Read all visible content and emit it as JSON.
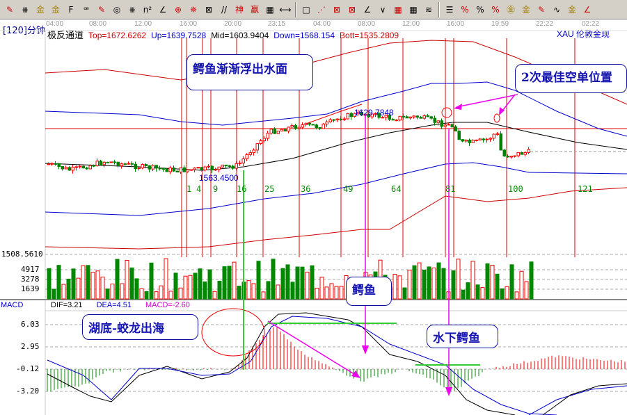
{
  "toolbar": {
    "icons": [
      {
        "name": "draw-pen-icon",
        "g": "✎",
        "c": "red"
      },
      {
        "name": "gann-icon",
        "g": "⧻",
        "c": ""
      },
      {
        "name": "gold-1-icon",
        "g": "金",
        "c": "gold"
      },
      {
        "name": "gold-2-icon",
        "g": "金",
        "c": "gold"
      },
      {
        "name": "f-icon",
        "g": "F",
        "c": ""
      },
      {
        "name": "spiral-icon",
        "g": "ꟹ",
        "c": ""
      },
      {
        "name": "pen-ruler-icon",
        "g": "✎",
        "c": "red"
      },
      {
        "name": "circle-ruler-icon",
        "g": "◎",
        "c": ""
      },
      {
        "name": "parallel-icon",
        "g": "⧻",
        "c": ""
      },
      {
        "name": "n2-icon",
        "g": "n²",
        "c": ""
      },
      {
        "name": "angle-icon",
        "g": "∠",
        "c": ""
      },
      {
        "name": "target-icon",
        "g": "⊕",
        "c": "red"
      },
      {
        "name": "compass-icon",
        "g": "✵",
        "c": "red"
      },
      {
        "name": "box-icon",
        "g": "⊠",
        "c": ""
      },
      {
        "name": "slash-icon",
        "g": "//",
        "c": ""
      },
      {
        "name": "shen-icon",
        "g": "神",
        "c": "red"
      },
      {
        "name": "ying-icon",
        "g": "赢",
        "c": "red"
      },
      {
        "name": "ruler-icon",
        "g": "▦",
        "c": ""
      },
      {
        "name": "width-icon",
        "g": "⟷",
        "c": ""
      },
      {
        "name": "sep"
      },
      {
        "name": "rect-icon",
        "g": "□",
        "c": ""
      },
      {
        "name": "fan-icon",
        "g": "⋰",
        "c": "red"
      },
      {
        "name": "gann-box-icon",
        "g": "⊠",
        "c": "red"
      },
      {
        "name": "gann-fan-icon",
        "g": "⊠",
        "c": "red"
      },
      {
        "name": "angle2-icon",
        "g": "∠",
        "c": ""
      },
      {
        "name": "wave-icon",
        "g": "∨",
        "c": ""
      },
      {
        "name": "grid-icon",
        "g": "▦",
        "c": "red"
      },
      {
        "name": "grid2-icon",
        "g": "▦",
        "c": ""
      },
      {
        "name": "lines-icon",
        "g": "≋",
        "c": ""
      },
      {
        "name": "sep"
      },
      {
        "name": "levels-icon",
        "g": "☰",
        "c": ""
      },
      {
        "name": "percent-angle-icon",
        "g": "%",
        "c": "red"
      },
      {
        "name": "percent-icon",
        "g": "%",
        "c": ""
      },
      {
        "name": "percent-lines-icon",
        "g": "%",
        "c": "red"
      },
      {
        "name": "gold-circle-icon",
        "g": "㊎",
        "c": "gold"
      },
      {
        "name": "gold-lines-icon",
        "g": "金",
        "c": "gold"
      },
      {
        "name": "marker-icon",
        "g": "✎",
        "c": "red"
      },
      {
        "name": "sine-icon",
        "g": "∿",
        "c": ""
      },
      {
        "name": "gold-3-icon",
        "g": "金",
        "c": "gold"
      },
      {
        "name": "angle-j-icon",
        "g": "∠",
        "c": "red"
      }
    ]
  },
  "period": "[120]分钟",
  "times": [
    "04:00",
    "08:00",
    "12:00",
    "16:00",
    "20:00",
    "23:15",
    "04:00",
    "08:00",
    "12:00",
    "16:00",
    "19:59",
    "22:22",
    "02:22"
  ],
  "indicator": {
    "name": "极反通道",
    "top": "Top=1672.6262",
    "up": "Up=1639.7528",
    "mid": "Mid=1603.9404",
    "down": "Down=1568.154",
    "bott": "Bott=1535.2809"
  },
  "symbol": "XAU  伦敦金现",
  "price_labels": {
    "high": "1629.7848",
    "low": "1563.4500",
    "axis": "1508.5610"
  },
  "fib_numbers": [
    "1",
    "4",
    "9",
    "16",
    "25",
    "36",
    "49",
    "64",
    "81",
    "100",
    "121"
  ],
  "volume_axis": [
    "4917",
    "3278",
    "1639"
  ],
  "macd": {
    "name": "MACD",
    "dif": "DIF=3.21",
    "dea": "DEA=4.51",
    "macd": "MACD=-2.60",
    "axis": [
      "6.03",
      "2.95",
      "-0.12",
      "-3.20"
    ]
  },
  "notes": {
    "crocodile_surface": "鳄鱼渐渐浮出水面",
    "best_short": "2次最佳空单位置",
    "crocodile": "鳄鱼",
    "dragon": "湖底-蛟龙出海",
    "underwater": "水下鳄鱼"
  },
  "colors": {
    "up": "#ff0000",
    "down": "#008000",
    "band_outer": "#cc0000",
    "band_inner": "#0000cc",
    "mid": "#000000"
  }
}
